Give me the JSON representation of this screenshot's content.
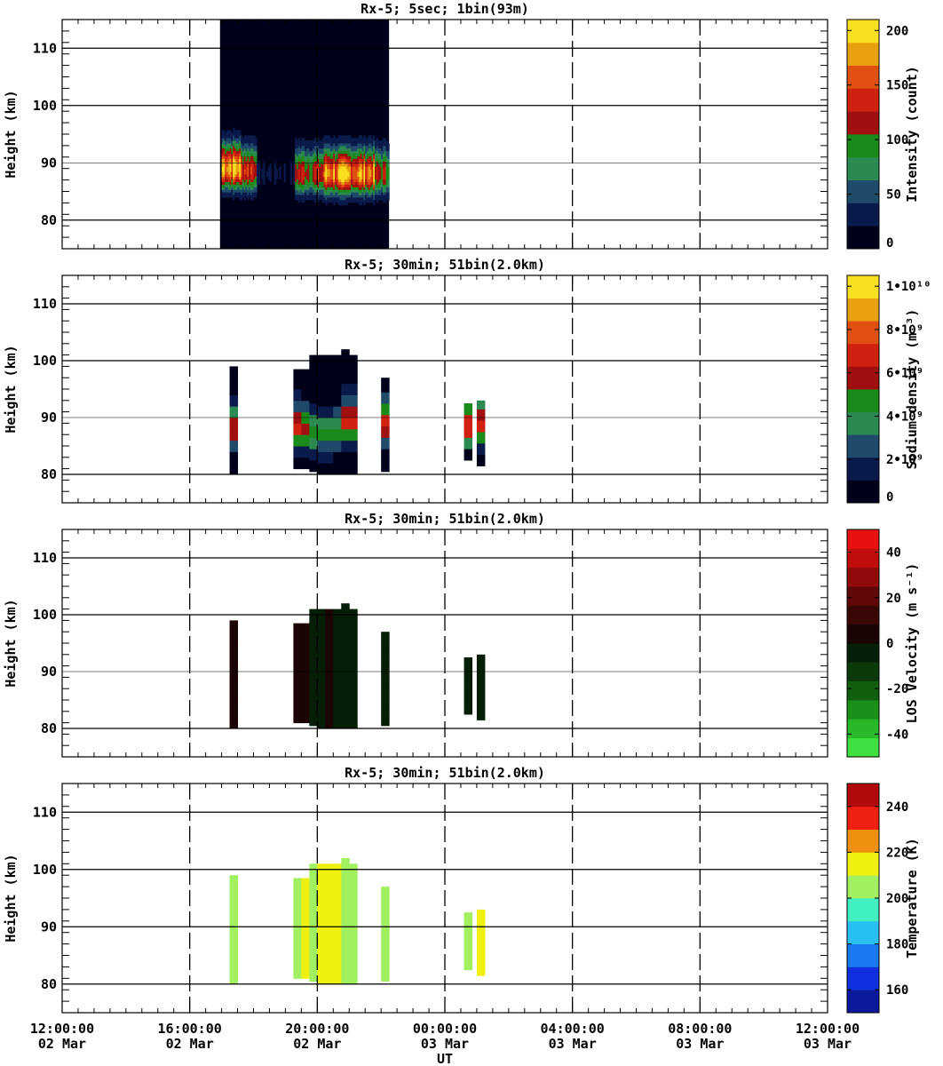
{
  "chart_data": [
    {
      "type": "heatmap",
      "title": "Rx-5;  5sec; 1bin(93m)",
      "ylabel": "Height (km)",
      "ylim": [
        75,
        115
      ],
      "yticks": [
        "80",
        "90",
        "100",
        "110"
      ],
      "grid": true,
      "colorbar": {
        "label": "Intensity (count)",
        "range": [
          0,
          210
        ],
        "ticks": [
          {
            "v": 0,
            "t": "0"
          },
          {
            "v": 50,
            "t": "50"
          },
          {
            "v": 100,
            "t": "100"
          },
          {
            "v": 150,
            "t": "150"
          },
          {
            "v": 200,
            "t": "200"
          }
        ],
        "colors": [
          "#00001a",
          "#0a1a4a",
          "#1f4a6a",
          "#2a8a50",
          "#1a8a1a",
          "#a01010",
          "#d02010",
          "#e05010",
          "#e8a010",
          "#f8e020"
        ]
      },
      "series_note": "continuous 5-s profiles",
      "data_window_ut_hours": [
        16.95,
        22.25
      ],
      "layer_peak_profiles": [
        {
          "start": 17.0,
          "end": 17.6,
          "peak_km": 89.0,
          "intensity": 185
        },
        {
          "start": 17.6,
          "end": 18.1,
          "peak_km": 88.5,
          "intensity": 140
        },
        {
          "start": 18.1,
          "end": 19.3,
          "peak_km": 88.0,
          "intensity": 15
        },
        {
          "start": 19.3,
          "end": 20.2,
          "peak_km": 88.0,
          "intensity": 120
        },
        {
          "start": 20.2,
          "end": 21.8,
          "peak_km": 88.0,
          "intensity": 170
        },
        {
          "start": 21.8,
          "end": 22.25,
          "peak_km": 88.0,
          "intensity": 110
        }
      ]
    },
    {
      "type": "heatmap",
      "title": "Rx-5; 30min; 51bin(2.0km)",
      "ylabel": "Height (km)",
      "ylim": [
        75,
        115
      ],
      "yticks": [
        "80",
        "90",
        "100",
        "110"
      ],
      "grid": true,
      "colorbar": {
        "label": "Sodium density (m⁻³)",
        "range": [
          0,
          10500000000.0
        ],
        "ticks": [
          {
            "v": 0,
            "t": "0"
          },
          {
            "v": 2000000000.0,
            "t": "2•10⁹"
          },
          {
            "v": 4000000000.0,
            "t": "4•10⁹"
          },
          {
            "v": 6000000000.0,
            "t": "6•10⁹"
          },
          {
            "v": 8000000000.0,
            "t": "8•10⁹"
          },
          {
            "v": 10000000000.0,
            "t": "1•10¹⁰"
          }
        ],
        "colors": [
          "#00001a",
          "#0a1a4a",
          "#1f4a6a",
          "#2a8a50",
          "#1a8a1a",
          "#a01010",
          "#d02010",
          "#e05010",
          "#e8a010",
          "#f8e020"
        ]
      },
      "columns": [
        {
          "t0": 17.25,
          "t1": 17.5,
          "z0": 80,
          "z1": 99,
          "peak_km": 88,
          "peak": 6500000000.0
        },
        {
          "t0": 19.25,
          "t1": 19.5,
          "z0": 81,
          "z1": 98.5,
          "peak_km": 88,
          "peak": 6500000000.0
        },
        {
          "t0": 19.5,
          "t1": 19.75,
          "z0": 81,
          "z1": 98.5,
          "peak_km": 88,
          "peak": 6000000000.0
        },
        {
          "t0": 19.75,
          "t1": 20.0,
          "z0": 80.5,
          "z1": 101,
          "peak_km": 87,
          "peak": 4500000000.0
        },
        {
          "t0": 20.0,
          "t1": 20.25,
          "z0": 80,
          "z1": 101,
          "peak_km": 87,
          "peak": 4200000000.0
        },
        {
          "t0": 20.25,
          "t1": 20.5,
          "z0": 80,
          "z1": 101,
          "peak_km": 87,
          "peak": 4300000000.0
        },
        {
          "t0": 20.5,
          "t1": 20.75,
          "z0": 80,
          "z1": 101,
          "peak_km": 87.5,
          "peak": 4400000000.0
        },
        {
          "t0": 20.75,
          "t1": 21.0,
          "z0": 80,
          "z1": 102,
          "peak_km": 89,
          "peak": 6500000000.0
        },
        {
          "t0": 21.0,
          "t1": 21.25,
          "z0": 80,
          "z1": 101,
          "peak_km": 89,
          "peak": 6500000000.0
        },
        {
          "t0": 22.0,
          "t1": 22.25,
          "z0": 80.5,
          "z1": 97,
          "peak_km": 89,
          "peak": 6500000000.0
        },
        {
          "t0": 24.6,
          "t1": 24.85,
          "z0": 82.5,
          "z1": 92.5,
          "peak_km": 88.5,
          "peak": 7500000000.0
        },
        {
          "t0": 25.0,
          "t1": 25.25,
          "z0": 81.5,
          "z1": 93,
          "peak_km": 88.5,
          "peak": 6500000000.0
        }
      ]
    },
    {
      "type": "heatmap",
      "title": "Rx-5; 30min; 51bin(2.0km)",
      "ylabel": "Height (km)",
      "ylim": [
        75,
        115
      ],
      "yticks": [
        "80",
        "90",
        "100",
        "110"
      ],
      "grid": true,
      "colorbar": {
        "label": "LOS Velocity (m s⁻¹)",
        "range": [
          -50,
          50
        ],
        "ticks": [
          {
            "v": -40,
            "t": "-40"
          },
          {
            "v": -20,
            "t": "-20"
          },
          {
            "v": 0,
            "t": "0"
          },
          {
            "v": 20,
            "t": "20"
          },
          {
            "v": 40,
            "t": "40"
          }
        ],
        "colors": [
          "#40e040",
          "#28b828",
          "#1a901a",
          "#106010",
          "#0a3a0a",
          "#061e06",
          "#1a0404",
          "#3a0606",
          "#600808",
          "#900a0a",
          "#c00c0c",
          "#e81010"
        ]
      },
      "columns": [
        {
          "t0": 17.25,
          "t1": 17.5,
          "z0": 80,
          "z1": 99,
          "value": 4
        },
        {
          "t0": 19.25,
          "t1": 19.5,
          "z0": 81,
          "z1": 98.5,
          "value": 5
        },
        {
          "t0": 19.5,
          "t1": 19.75,
          "z0": 81,
          "z1": 98.5,
          "value": 3
        },
        {
          "t0": 19.75,
          "t1": 20.0,
          "z0": 80.5,
          "z1": 101,
          "value": -3
        },
        {
          "t0": 20.0,
          "t1": 20.25,
          "z0": 80,
          "z1": 101,
          "value": -4
        },
        {
          "t0": 20.25,
          "t1": 20.5,
          "z0": 80,
          "z1": 101,
          "value": 2
        },
        {
          "t0": 20.5,
          "t1": 20.75,
          "z0": 80,
          "z1": 101,
          "value": -2
        },
        {
          "t0": 20.75,
          "t1": 21.0,
          "z0": 80,
          "z1": 102,
          "value": -3
        },
        {
          "t0": 21.0,
          "t1": 21.25,
          "z0": 80,
          "z1": 101,
          "value": -5
        },
        {
          "t0": 22.0,
          "t1": 22.25,
          "z0": 80.5,
          "z1": 97,
          "value": -4
        },
        {
          "t0": 24.6,
          "t1": 24.85,
          "z0": 82.5,
          "z1": 92.5,
          "value": -2
        },
        {
          "t0": 25.0,
          "t1": 25.25,
          "z0": 81.5,
          "z1": 93,
          "value": -3
        }
      ]
    },
    {
      "type": "heatmap",
      "title": "Rx-5; 30min; 51bin(2.0km)",
      "ylabel": "Height (km)",
      "ylim": [
        75,
        115
      ],
      "yticks": [
        "80",
        "90",
        "100",
        "110"
      ],
      "grid": true,
      "colorbar": {
        "label": "Temperature (K)",
        "range": [
          150,
          250
        ],
        "ticks": [
          {
            "v": 160,
            "t": "160"
          },
          {
            "v": 180,
            "t": "180"
          },
          {
            "v": 200,
            "t": "200"
          },
          {
            "v": 220,
            "t": "220"
          },
          {
            "v": 240,
            "t": "240"
          }
        ],
        "colors": [
          "#0a1a9a",
          "#1030e0",
          "#1878f0",
          "#28c0f0",
          "#40f0c0",
          "#a0f060",
          "#f0f010",
          "#f09010",
          "#f02010",
          "#b00a0a"
        ]
      },
      "columns": [
        {
          "t0": 17.25,
          "t1": 17.5,
          "z0": 80,
          "z1": 99,
          "value": 205
        },
        {
          "t0": 19.25,
          "t1": 19.5,
          "z0": 81,
          "z1": 98.5,
          "value": 208
        },
        {
          "t0": 19.5,
          "t1": 19.75,
          "z0": 81,
          "z1": 98.5,
          "value": 212
        },
        {
          "t0": 19.75,
          "t1": 20.0,
          "z0": 80.5,
          "z1": 101,
          "value": 206
        },
        {
          "t0": 20.0,
          "t1": 20.25,
          "z0": 80,
          "z1": 101,
          "value": 212
        },
        {
          "t0": 20.25,
          "t1": 20.5,
          "z0": 80,
          "z1": 101,
          "value": 214
        },
        {
          "t0": 20.5,
          "t1": 20.75,
          "z0": 80,
          "z1": 101,
          "value": 210
        },
        {
          "t0": 20.75,
          "t1": 21.0,
          "z0": 80,
          "z1": 102,
          "value": 207
        },
        {
          "t0": 21.0,
          "t1": 21.25,
          "z0": 80,
          "z1": 101,
          "value": 200
        },
        {
          "t0": 22.0,
          "t1": 22.25,
          "z0": 80.5,
          "z1": 97,
          "value": 204
        },
        {
          "t0": 24.6,
          "t1": 24.85,
          "z0": 82.5,
          "z1": 92.5,
          "value": 206
        },
        {
          "t0": 25.0,
          "t1": 25.25,
          "z0": 81.5,
          "z1": 93,
          "value": 210
        }
      ]
    }
  ],
  "x_axis": {
    "label": "UT",
    "range_ut_hours": [
      12,
      36
    ],
    "ticks": [
      {
        "h": 12,
        "time": "12:00:00",
        "date": "02 Mar"
      },
      {
        "h": 16,
        "time": "16:00:00",
        "date": "02 Mar"
      },
      {
        "h": 20,
        "time": "20:00:00",
        "date": "02 Mar"
      },
      {
        "h": 24,
        "time": "00:00:00",
        "date": "03 Mar"
      },
      {
        "h": 28,
        "time": "04:00:00",
        "date": "03 Mar"
      },
      {
        "h": 32,
        "time": "08:00:00",
        "date": "03 Mar"
      },
      {
        "h": 36,
        "time": "12:00:00",
        "date": "03 Mar"
      }
    ]
  }
}
